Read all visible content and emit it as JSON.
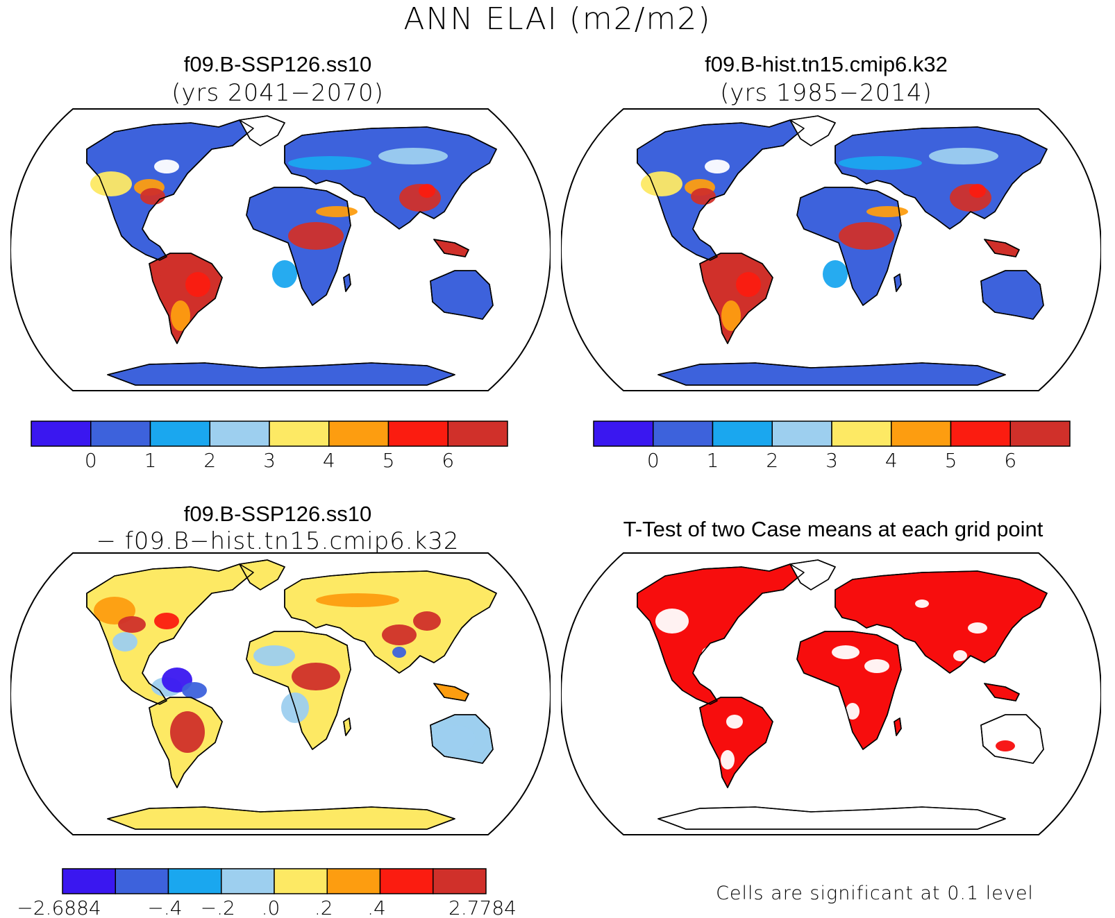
{
  "title": "ANN ELAI (m2/m2)",
  "panels": [
    {
      "title": "f09.B-SSP126.ss10",
      "subtitle": "(yrs 2041−2070)"
    },
    {
      "title": "f09.B-hist.tn15.cmip6.k32",
      "subtitle": "(yrs 1985−2014)"
    },
    {
      "title": "f09.B-SSP126.ss10",
      "subtitle": "− f09.B−hist.tn15.cmip6.k32"
    },
    {
      "title": "T-Test of two Case means at each grid point",
      "subtitle": ""
    }
  ],
  "colorbar_abs": {
    "colors": [
      "#3a17f0",
      "#3d62dc",
      "#1aa7ef",
      "#9dcfef",
      "#fde964",
      "#fd9d10",
      "#fb1c10",
      "#d0302a"
    ],
    "tick_labels": [
      "0",
      "1",
      "2",
      "3",
      "4",
      "5",
      "6"
    ]
  },
  "colorbar_diff": {
    "colors": [
      "#3a17f0",
      "#3d62dc",
      "#1aa7ef",
      "#9dcfef",
      "#fde964",
      "#fd9d10",
      "#fb1c10",
      "#d0302a"
    ],
    "tick_labels": [
      "−2.6884",
      "",
      "−.4",
      "−.2",
      ".0",
      ".2",
      ".4",
      "",
      "2.7784"
    ]
  },
  "significance_note": "Cells are significant at 0.1 level",
  "significance_color": "#f70d0d",
  "chart_data": [
    {
      "type": "heatmap",
      "title": "f09.B-SSP126.ss10",
      "subtitle": "(yrs 2041−2070)",
      "variable": "ANN ELAI",
      "units": "m2/m2",
      "levels": [
        0,
        1,
        2,
        3,
        4,
        5,
        6
      ]
    },
    {
      "type": "heatmap",
      "title": "f09.B-hist.tn15.cmip6.k32",
      "subtitle": "(yrs 1985−2014)",
      "variable": "ANN ELAI",
      "units": "m2/m2",
      "levels": [
        0,
        1,
        2,
        3,
        4,
        5,
        6
      ]
    },
    {
      "type": "heatmap",
      "title": "f09.B-SSP126.ss10 − f09.B−hist.tn15.cmip6.k32",
      "variable": "ANN ELAI difference",
      "units": "m2/m2",
      "levels": [
        -0.4,
        -0.2,
        0.0,
        0.2,
        0.4
      ],
      "min": -2.6884,
      "max": 2.7784
    },
    {
      "type": "heatmap",
      "title": "T-Test of two Case means at each grid point",
      "note": "Cells are significant at 0.1 level",
      "significance_level": 0.1
    }
  ]
}
